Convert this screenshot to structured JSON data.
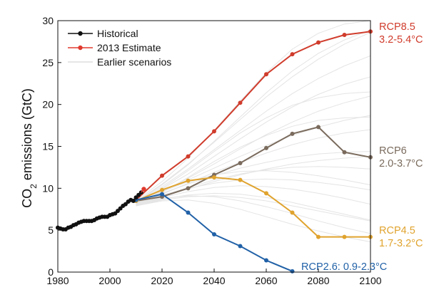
{
  "chart_data": {
    "type": "line",
    "xlim": [
      1980,
      2100
    ],
    "ylim": [
      0,
      30
    ],
    "x_ticks": [
      1980,
      2000,
      2020,
      2040,
      2060,
      2080,
      2100
    ],
    "y_ticks": [
      0,
      5,
      10,
      15,
      20,
      25,
      30
    ],
    "ylabel": {
      "main": "CO",
      "sub": "2",
      "rest": " emissions (GtC)"
    },
    "grid": false,
    "legend": {
      "placement": "top-left",
      "entries": [
        {
          "label": "Historical",
          "color": "#111111"
        },
        {
          "label": "2013 Estimate",
          "color": "#e03a2f"
        },
        {
          "label": "Earlier scenarios",
          "color": "#dddddd"
        }
      ]
    },
    "historical": {
      "color": "#111111",
      "x": [
        1980,
        1981,
        1982,
        1983,
        1984,
        1985,
        1986,
        1987,
        1988,
        1989,
        1990,
        1991,
        1992,
        1993,
        1994,
        1995,
        1996,
        1997,
        1998,
        1999,
        2000,
        2001,
        2002,
        2003,
        2004,
        2005,
        2006,
        2007,
        2008,
        2009,
        2010,
        2011,
        2012
      ],
      "y": [
        5.3,
        5.2,
        5.1,
        5.1,
        5.3,
        5.4,
        5.6,
        5.7,
        5.9,
        6.0,
        6.1,
        6.1,
        6.1,
        6.1,
        6.2,
        6.4,
        6.5,
        6.6,
        6.6,
        6.6,
        6.8,
        6.9,
        7.0,
        7.3,
        7.6,
        7.9,
        8.1,
        8.4,
        8.6,
        8.5,
        8.9,
        9.2,
        9.5
      ]
    },
    "estimate_2013": {
      "color": "#e03a2f",
      "x": [
        2013
      ],
      "y": [
        9.9
      ]
    },
    "scenarios": [
      {
        "name": "RCP8.5",
        "label_lines": [
          "RCP8.5",
          "3.2-5.4°C"
        ],
        "color": "#d03c2c",
        "x": [
          2010,
          2020,
          2030,
          2040,
          2050,
          2060,
          2070,
          2080,
          2090,
          2100
        ],
        "y": [
          8.6,
          11.5,
          13.8,
          16.8,
          20.2,
          23.6,
          26.0,
          27.4,
          28.3,
          28.7
        ]
      },
      {
        "name": "RCP6",
        "label_lines": [
          "RCP6",
          "2.0-3.7°C"
        ],
        "color": "#7a6b5d",
        "x": [
          2010,
          2020,
          2030,
          2040,
          2050,
          2060,
          2070,
          2080,
          2090,
          2100
        ],
        "y": [
          8.5,
          9.0,
          10.0,
          11.6,
          13.0,
          14.8,
          16.5,
          17.3,
          14.3,
          13.7
        ]
      },
      {
        "name": "RCP4.5",
        "label_lines": [
          "RCP4.5",
          "1.7-3.2°C"
        ],
        "color": "#e0a32e",
        "x": [
          2010,
          2020,
          2030,
          2040,
          2050,
          2060,
          2070,
          2080,
          2090,
          2100
        ],
        "y": [
          8.5,
          9.8,
          10.9,
          11.3,
          11.0,
          9.4,
          7.1,
          4.2,
          4.2,
          4.2
        ]
      },
      {
        "name": "RCP2.6",
        "label_lines": [
          "RCP2.6: 0.9-2.3°C"
        ],
        "color": "#2161a7",
        "x": [
          2010,
          2020,
          2030,
          2040,
          2050,
          2060,
          2070
        ],
        "y": [
          8.6,
          9.3,
          7.1,
          4.5,
          3.1,
          1.4,
          0.1
        ]
      }
    ],
    "earlier_scenarios": {
      "color": "#e4e4e4",
      "x": [
        2010,
        2020,
        2030,
        2040,
        2050,
        2060,
        2070,
        2080,
        2090,
        2100
      ],
      "lines": [
        [
          8.5,
          10.8,
          13.6,
          16.9,
          20.4,
          23.8,
          26.6,
          28.5,
          29.6,
          30
        ],
        [
          8.4,
          10.5,
          12.9,
          15.5,
          18.2,
          20.9,
          23.3,
          25.4,
          27.2,
          28.6
        ],
        [
          8.3,
          10.2,
          12.3,
          14.6,
          16.9,
          19.2,
          21.3,
          23.1,
          24.6,
          25.8
        ],
        [
          8.4,
          9.9,
          11.7,
          13.8,
          15.9,
          17.9,
          19.7,
          21.2,
          22.4,
          23.3
        ],
        [
          8.2,
          9.6,
          11.2,
          12.9,
          14.7,
          16.4,
          17.9,
          19.2,
          20.2,
          21.0
        ],
        [
          8.3,
          9.7,
          11.0,
          12.4,
          13.8,
          15.1,
          16.3,
          17.3,
          18.1,
          18.7
        ],
        [
          8.1,
          9.3,
          10.6,
          11.9,
          13.1,
          14.2,
          15.2,
          16.0,
          16.6,
          17.0
        ],
        [
          8.2,
          9.4,
          10.5,
          11.5,
          12.4,
          13.1,
          13.7,
          14.1,
          14.3,
          14.4
        ],
        [
          8.0,
          9.1,
          10.1,
          11.0,
          11.7,
          12.2,
          12.5,
          12.6,
          12.5,
          12.3
        ],
        [
          8.1,
          9.2,
          10.0,
          10.6,
          11.0,
          11.1,
          11.0,
          10.7,
          10.3,
          9.8
        ],
        [
          8.0,
          8.9,
          9.6,
          10.1,
          10.3,
          10.2,
          9.9,
          9.4,
          8.8,
          8.1
        ],
        [
          7.9,
          8.7,
          9.2,
          9.4,
          9.3,
          8.9,
          8.3,
          7.6,
          6.9,
          6.2
        ],
        [
          8.0,
          8.8,
          9.1,
          9.0,
          8.5,
          7.8,
          7.0,
          6.1,
          5.3,
          4.6
        ],
        [
          7.9,
          8.5,
          8.6,
          8.2,
          7.5,
          6.6,
          5.7,
          4.9,
          4.2,
          3.6
        ],
        [
          8.1,
          9.5,
          11.3,
          13.2,
          14.9,
          16.3,
          17.4,
          18.1,
          18.4,
          18.5
        ],
        [
          8.2,
          10.0,
          12.1,
          14.4,
          16.6,
          18.4,
          19.9,
          20.8,
          21.3,
          21.5
        ],
        [
          8.3,
          10.4,
          12.8,
          15.6,
          18.5,
          21.4,
          24.0,
          26.1,
          27.7,
          28.9
        ],
        [
          8.0,
          9.0,
          9.9,
          10.8,
          11.6,
          12.3,
          12.9,
          13.3,
          13.6,
          13.8
        ],
        [
          8.1,
          9.6,
          10.8,
          11.6,
          12.0,
          12.1,
          11.9,
          11.5,
          11.0,
          10.4
        ],
        [
          7.9,
          8.6,
          9.0,
          9.1,
          8.9,
          8.5,
          7.9,
          7.3,
          6.7,
          6.1
        ]
      ]
    }
  }
}
